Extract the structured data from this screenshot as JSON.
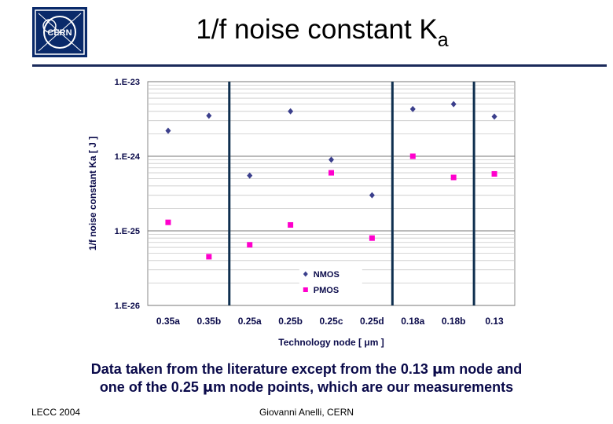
{
  "slide": {
    "title_main": "1/f noise constant K",
    "title_sub": "a",
    "caption_line1_a": "Data taken from the literature except from the 0.13 ",
    "caption_line1_b": "m node and",
    "caption_line2_a": "one of the 0.25 ",
    "caption_line2_b": "m node points, which are our measurements",
    "mu_symbol": "μ",
    "footer_left": "LECC 2004",
    "footer_center": "Giovanni Anelli, CERN",
    "logo_text": "CERN"
  },
  "colors": {
    "nmos": "#3b3f8c",
    "pmos": "#ff00cc",
    "separator": "#0f2f4f",
    "title_rule": "#1a2a5a",
    "caption": "#0a0a4a"
  },
  "chart_data": {
    "type": "scatter",
    "title": "",
    "xlabel": "Technology node [ μm ]",
    "ylabel": "1/f noise constant Ka [ J ]",
    "categories": [
      "0.35a",
      "0.35b",
      "0.25a",
      "0.25b",
      "0.25c",
      "0.25d",
      "0.18a",
      "0.18b",
      "0.13"
    ],
    "yscale": "log",
    "ylim": [
      1e-26,
      1e-23
    ],
    "yticks": [
      {
        "value": 1e-23,
        "label": "1.E-23"
      },
      {
        "value": 1e-24,
        "label": "1.E-24"
      },
      {
        "value": 1e-25,
        "label": "1.E-25"
      },
      {
        "value": 1e-26,
        "label": "1.E-26"
      }
    ],
    "group_separators_after": [
      "0.25d",
      "0.18b"
    ],
    "group_separators_before": [
      "0.25a"
    ],
    "legend_position": "bottom-center",
    "series": [
      {
        "name": "NMOS",
        "marker": "diamond",
        "values": [
          2.2e-24,
          3.5e-24,
          5.5e-25,
          4e-24,
          9e-25,
          3e-25,
          4.3e-24,
          5e-24,
          3.4e-24
        ]
      },
      {
        "name": "PMOS",
        "marker": "square",
        "values": [
          1.3e-25,
          4.5e-26,
          6.5e-26,
          1.2e-25,
          6e-25,
          8e-26,
          1e-24,
          5.2e-25,
          5.8e-25
        ]
      }
    ]
  }
}
